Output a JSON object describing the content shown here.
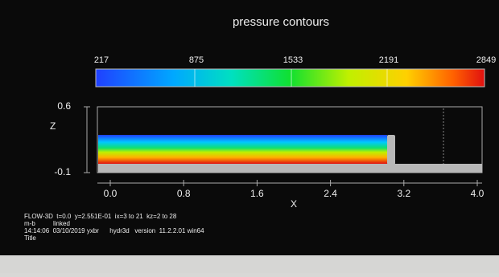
{
  "title": "pressure contours",
  "colorbar": {
    "labels": [
      "217",
      "875",
      "1533",
      "2191",
      "2849"
    ]
  },
  "plot": {
    "z_label": "Z",
    "z_ticks": [
      "0.6",
      "-0.1"
    ],
    "x_label": "X",
    "x_ticks": [
      "0.0",
      "0.8",
      "1.6",
      "2.4",
      "3.2",
      "4.0"
    ]
  },
  "footer": [
    "FLOW-3D  t=0.0  y=2.551E-01  ix=3 to 21  kz=2 to 28",
    "m-b          linked",
    "14:14:06  03/10/2019 yxbr      hydr3d   version  11.2.2.01 win64",
    "Title"
  ]
}
